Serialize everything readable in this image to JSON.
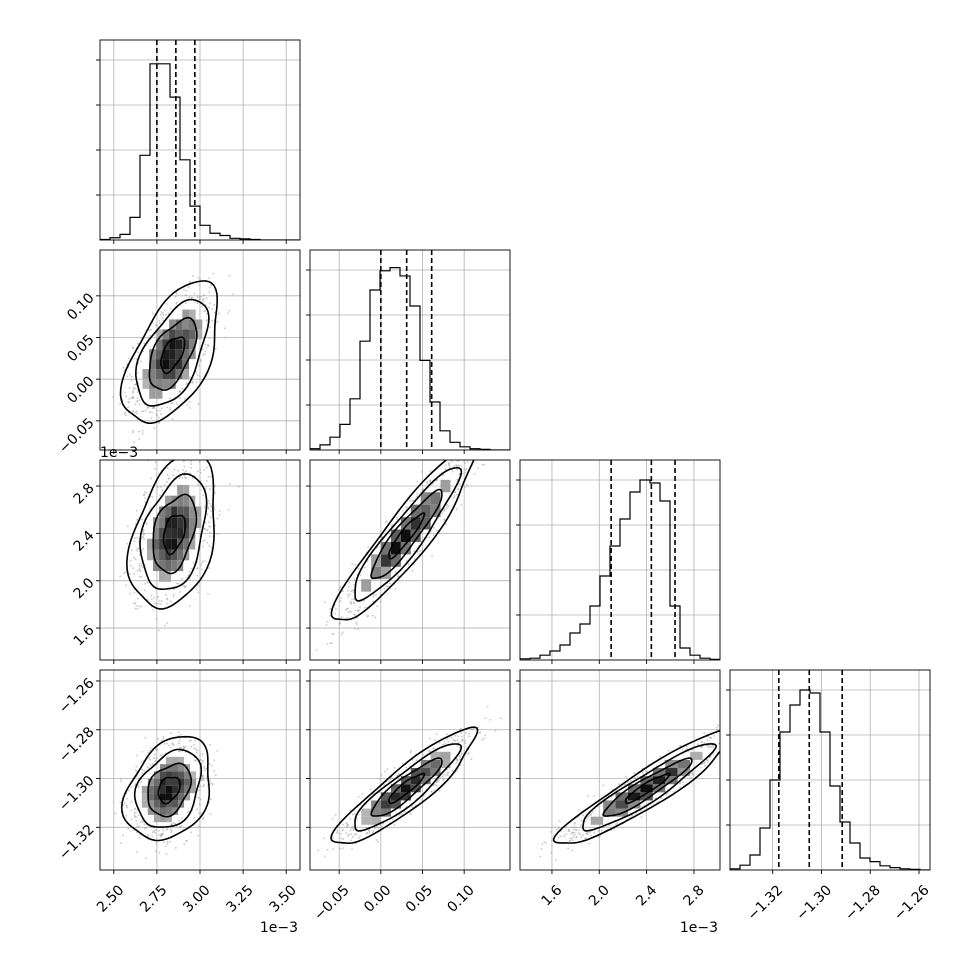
{
  "chart_data": {
    "type": "corner",
    "description_free": true,
    "grid": true,
    "quantile_lines": [
      0.16,
      0.5,
      0.84
    ],
    "variables": [
      {
        "id": "p0",
        "range": [
          0.00242,
          0.00358
        ],
        "ticks": [
          0.0025,
          0.00275,
          0.003,
          0.00325,
          0.0035
        ],
        "tick_labels": [
          "2.50",
          "2.75",
          "3.00",
          "3.25",
          "3.50"
        ],
        "offset_label": "1e−3",
        "quantiles": [
          0.00275,
          0.00286,
          0.00297
        ],
        "hist": {
          "edges_start": 0.00242,
          "bin_width": 5.8e-05,
          "counts": [
            1,
            4,
            10,
            40,
            150,
            312,
            312,
            253,
            142,
            60,
            26,
            12,
            8,
            3,
            2,
            1,
            0,
            0,
            0,
            0
          ],
          "ymax": 340
        }
      },
      {
        "id": "p1",
        "range": [
          -0.085,
          0.155
        ],
        "ticks": [
          -0.05,
          0.0,
          0.05,
          0.1
        ],
        "tick_labels": [
          "−0.05",
          "0.00",
          "0.05",
          "0.10"
        ],
        "offset_label": "",
        "quantiles": [
          0.0,
          0.031,
          0.061
        ],
        "hist": {
          "edges_start": -0.085,
          "bin_width": 0.012,
          "counts": [
            2,
            8,
            20,
            40,
            80,
            170,
            250,
            280,
            285,
            272,
            225,
            140,
            75,
            30,
            12,
            5,
            2,
            1,
            0,
            0
          ],
          "ymax": 300
        }
      },
      {
        "id": "p2",
        "range": [
          0.00133,
          0.00302
        ],
        "ticks": [
          0.0016,
          0.002,
          0.0024,
          0.0028
        ],
        "tick_labels": [
          "1.6",
          "2.0",
          "2.4",
          "2.8"
        ],
        "offset_label": "1e−3",
        "quantiles": [
          0.0021,
          0.00244,
          0.00264
        ],
        "hist": {
          "edges_start": 0.00133,
          "bin_width": 8.45e-05,
          "counts": [
            2,
            3,
            8,
            15,
            25,
            45,
            60,
            90,
            140,
            190,
            235,
            280,
            300,
            295,
            265,
            90,
            20,
            8,
            3,
            1
          ],
          "ymax": 320
        }
      },
      {
        "id": "p3",
        "range": [
          -1.3375,
          -1.2555
        ],
        "ticks": [
          -1.32,
          -1.3,
          -1.28,
          -1.26
        ],
        "tick_labels": [
          "−1.32",
          "−1.30",
          "−1.28",
          "−1.26"
        ],
        "offset_label": "",
        "quantiles": [
          -1.3175,
          -1.305,
          -1.2915
        ],
        "hist": {
          "edges_start": -1.3375,
          "bin_width": 0.0041,
          "counts": [
            2,
            8,
            25,
            70,
            150,
            230,
            275,
            300,
            295,
            230,
            140,
            80,
            45,
            20,
            14,
            7,
            4,
            2,
            1,
            0
          ],
          "ymax": 320
        }
      }
    ],
    "pairs": [
      {
        "x": "p0",
        "y": "p1",
        "center": [
          0.00284,
          0.03
        ],
        "sd": [
          0.00011,
          0.034
        ],
        "corr": 0.55
      },
      {
        "x": "p0",
        "y": "p2",
        "center": [
          0.00285,
          0.0024
        ],
        "sd": [
          0.0001,
          0.00026
        ],
        "corr": 0.35
      },
      {
        "x": "p1",
        "y": "p2",
        "center": [
          0.03,
          0.00238
        ],
        "sd": [
          0.034,
          0.0003
        ],
        "corr": 0.92
      },
      {
        "x": "p0",
        "y": "p3",
        "center": [
          0.00282,
          -1.3045
        ],
        "sd": [
          0.0001,
          0.0085
        ],
        "corr": 0.3
      },
      {
        "x": "p1",
        "y": "p3",
        "center": [
          0.03,
          -1.304
        ],
        "sd": [
          0.034,
          0.0095
        ],
        "corr": 0.9
      },
      {
        "x": "p2",
        "y": "p3",
        "center": [
          0.0024,
          -1.304
        ],
        "sd": [
          0.0003,
          0.0095
        ],
        "corr": 0.93
      }
    ],
    "contour_levels_sigma": [
      0.5,
      1.0,
      1.5,
      2.0
    ]
  }
}
